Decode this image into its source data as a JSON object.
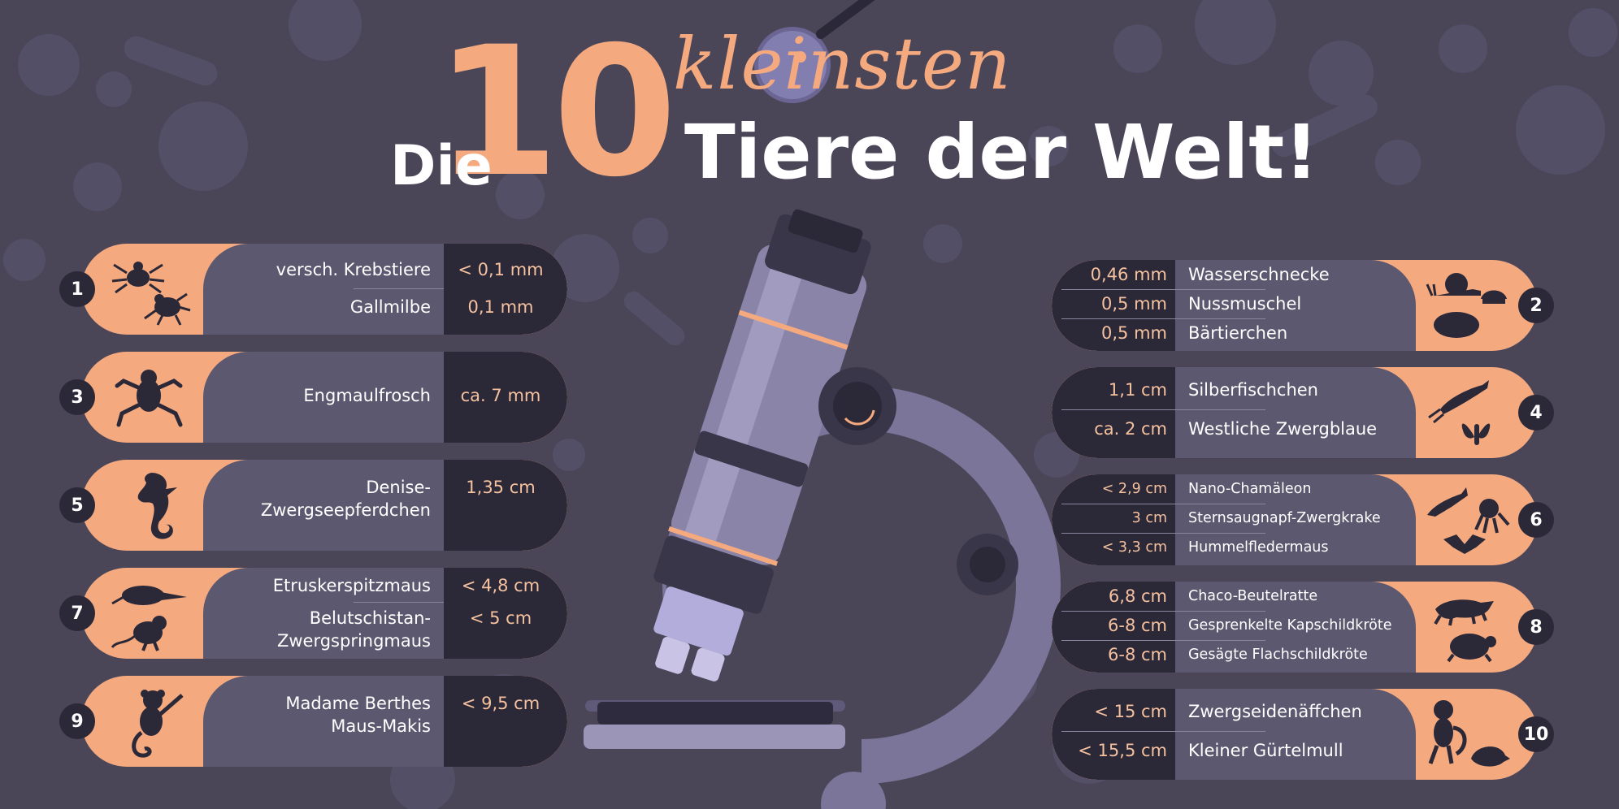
{
  "title": {
    "die": "Die",
    "ten": "10",
    "klein": "kleinsten",
    "rest": "Tiere der Welt!"
  },
  "left_cards": [
    {
      "rank": "1",
      "rows": [
        {
          "name": "versch. Krebstiere",
          "size": "< 0,1 mm"
        },
        {
          "name": "Gallmilbe",
          "size": "0,1 mm"
        }
      ],
      "icons": [
        "tick-icon",
        "mite-icon"
      ]
    },
    {
      "rank": "3",
      "rows": [
        {
          "name": "Engmaulfrosch",
          "size": "ca. 7 mm"
        }
      ],
      "icons": [
        "frog-icon"
      ]
    },
    {
      "rank": "5",
      "rows": [
        {
          "name": "Denise-Zwergseepferdchen",
          "size": "1,35 cm"
        }
      ],
      "icons": [
        "seahorse-icon"
      ]
    },
    {
      "rank": "7",
      "rows": [
        {
          "name": "Etruskerspitzmaus",
          "size": "< 4,8 cm"
        },
        {
          "name": "Belutschistan-Zwergspringmaus",
          "size": "< 5 cm"
        }
      ],
      "icons": [
        "shrew-icon",
        "jerboa-icon"
      ]
    },
    {
      "rank": "9",
      "rows": [
        {
          "name": "Madame Berthes Maus-Makis",
          "size": "< 9,5 cm"
        }
      ],
      "icons": [
        "lemur-icon"
      ]
    }
  ],
  "right_cards": [
    {
      "rank": "2",
      "rows": [
        {
          "name": "Wasserschnecke",
          "size": "0,46 mm"
        },
        {
          "name": "Nussmuschel",
          "size": "0,5 mm"
        },
        {
          "name": "Bärtierchen",
          "size": "0,5 mm"
        }
      ],
      "icons": [
        "snail-icon",
        "shell-icon",
        "tardigrade-icon"
      ]
    },
    {
      "rank": "4",
      "rows": [
        {
          "name": "Silberfischchen",
          "size": "1,1 cm"
        },
        {
          "name": "Westliche Zwergblaue",
          "size": "ca. 2 cm"
        }
      ],
      "icons": [
        "silverfish-icon",
        "butterfly-icon"
      ]
    },
    {
      "rank": "6",
      "rows": [
        {
          "name": "Nano-Chamäleon",
          "size": "< 2,9 cm"
        },
        {
          "name": "Sternsaugnapf-Zwergkrake",
          "size": "3 cm"
        },
        {
          "name": "Hummelfledermaus",
          "size": "< 3,3 cm"
        }
      ],
      "icons": [
        "chameleon-icon",
        "octopus-icon",
        "bat-icon"
      ]
    },
    {
      "rank": "8",
      "rows": [
        {
          "name": "Chaco-Beutelratte",
          "size": "6,8 cm"
        },
        {
          "name": "Gesprenkelte Kapschildkröte",
          "size": "6-8 cm"
        },
        {
          "name": "Gesägte Flachschildkröte",
          "size": "6-8 cm"
        }
      ],
      "icons": [
        "opossum-icon",
        "turtle-icon"
      ]
    },
    {
      "rank": "10",
      "rows": [
        {
          "name": "Zwergseidenäffchen",
          "size": "< 15 cm"
        },
        {
          "name": "Kleiner Gürtelmull",
          "size": "< 15,5 cm"
        }
      ],
      "icons": [
        "marmoset-icon",
        "armadillo-icon"
      ]
    }
  ],
  "colors": {
    "background": "#4a4658",
    "accent": "#f5a97f",
    "panel": "#5c5870",
    "dark": "#2b2838",
    "microscope": "#8a84a8"
  },
  "illustration": "microscope-icon"
}
